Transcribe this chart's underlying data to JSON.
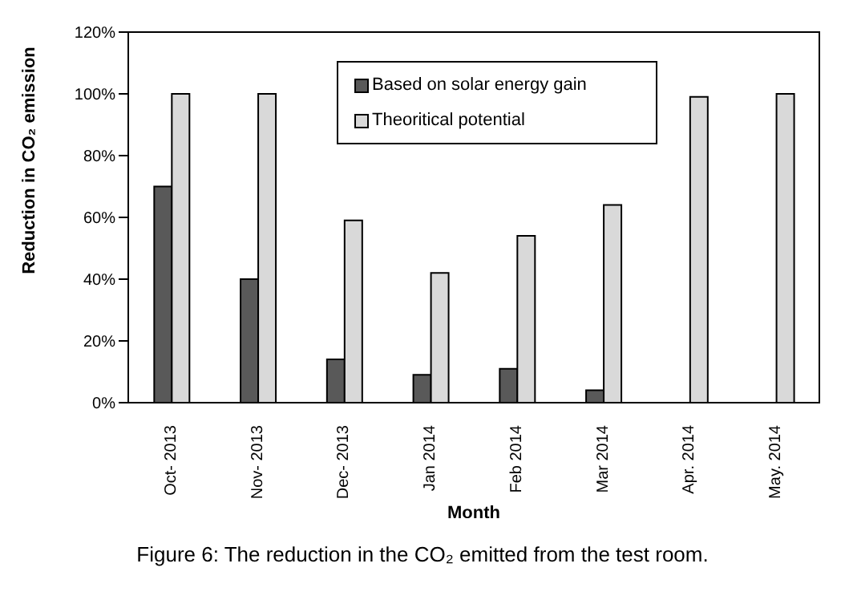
{
  "chart_data": {
    "type": "bar",
    "xlabel": "Month",
    "ylabel": "Reduction in CO₂ emission",
    "annotations": [
      "Figure 6: The reduction in the CO₂ emitted from the test room."
    ],
    "categories": [
      "Oct- 2013",
      "Nov- 2013",
      "Dec- 2013",
      "Jan 2014",
      "Feb 2014",
      "Mar 2014",
      "Apr. 2014",
      "May. 2014"
    ],
    "series": [
      {
        "name": "Based on solar  energy gain",
        "color": "#595959",
        "values": [
          70,
          40,
          14,
          9,
          11,
          4,
          0,
          0
        ]
      },
      {
        "name": "Theoritical potential",
        "color": "#d9d9d9",
        "values": [
          100,
          100,
          59,
          42,
          54,
          64,
          99,
          100
        ]
      }
    ],
    "ylim": [
      0,
      120
    ],
    "yticks": [
      {
        "value": 0,
        "label": "0%"
      },
      {
        "value": 20,
        "label": "20%"
      },
      {
        "value": 40,
        "label": "40%"
      },
      {
        "value": 60,
        "label": "60%"
      },
      {
        "value": 80,
        "label": "80%"
      },
      {
        "value": 100,
        "label": "100%"
      },
      {
        "value": 120,
        "label": "120%"
      }
    ],
    "legend": "top",
    "grid": false
  }
}
